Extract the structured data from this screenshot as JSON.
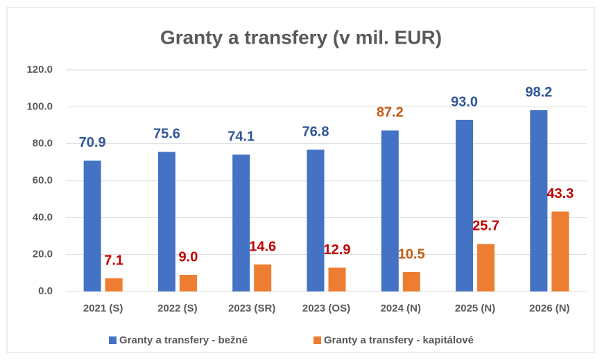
{
  "chart_data": {
    "type": "bar",
    "title": "Granty a transfery (v mil. EUR)",
    "categories": [
      "2021 (S)",
      "2022 (S)",
      "2023 (SR)",
      "2023 (OS)",
      "2024 (N)",
      "2025 (N)",
      "2026 (N)"
    ],
    "series": [
      {
        "name": "Granty a transfery - bežné",
        "color": "#4472c4",
        "values": [
          70.9,
          75.6,
          74.1,
          76.8,
          87.2,
          93.0,
          98.2
        ],
        "value_labels": [
          "70.9",
          "75.6",
          "74.1",
          "76.8",
          "87.2",
          "93.0",
          "98.2"
        ],
        "label_colors": [
          "#2f5597",
          "#2f5597",
          "#2f5597",
          "#2f5597",
          "#c55a11",
          "#2f5597",
          "#2f5597"
        ]
      },
      {
        "name": "Granty a transfery - kapitálové",
        "color": "#ed7d31",
        "values": [
          7.1,
          9.0,
          14.6,
          12.9,
          10.5,
          25.7,
          43.3
        ],
        "value_labels": [
          "7.1",
          "9.0",
          "14.6",
          "12.9",
          "10.5",
          "25.7",
          "43.3"
        ],
        "label_colors": [
          "#c00000",
          "#c00000",
          "#c00000",
          "#c00000",
          "#c55a11",
          "#c00000",
          "#c00000"
        ]
      }
    ],
    "ylim": [
      0,
      120
    ],
    "yticks": [
      {
        "value": 0,
        "label": "0.0"
      },
      {
        "value": 20,
        "label": "20.0"
      },
      {
        "value": 40,
        "label": "40.0"
      },
      {
        "value": 60,
        "label": "60.0"
      },
      {
        "value": 80,
        "label": "80.0"
      },
      {
        "value": 100,
        "label": "100.0"
      },
      {
        "value": 120,
        "label": "120.0"
      }
    ],
    "grid": true,
    "legend": "bottom"
  }
}
